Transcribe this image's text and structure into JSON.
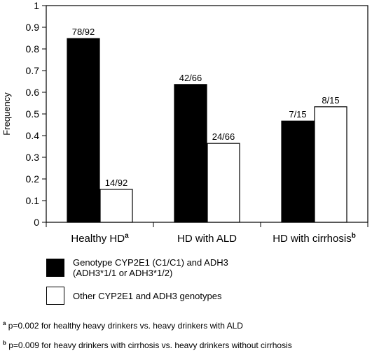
{
  "chart_data": {
    "type": "bar",
    "ylabel": "Frequency",
    "ylim": [
      0,
      1
    ],
    "yticks": [
      "0",
      "0.1",
      "0.2",
      "0.3",
      "0.4",
      "0.5",
      "0.6",
      "0.7",
      "0.8",
      "0.9",
      "1"
    ],
    "categories": [
      {
        "label": "Healthy HD",
        "sup": "a"
      },
      {
        "label": "HD with ALD",
        "sup": ""
      },
      {
        "label": "HD with cirrhosis",
        "sup": "b"
      }
    ],
    "series": [
      {
        "name": "Genotype CYP2E1 (C1/C1) and ADH3 (ADH3*1/1 or ADH3*1/2)",
        "fill": "#000000",
        "values": [
          0.848,
          0.636,
          0.467
        ],
        "data_labels": [
          "78/92",
          "42/66",
          "7/15"
        ]
      },
      {
        "name": "Other CYP2E1 and ADH3 genotypes",
        "fill": "#ffffff",
        "values": [
          0.152,
          0.364,
          0.533
        ],
        "data_labels": [
          "14/92",
          "24/66",
          "8/15"
        ]
      }
    ],
    "grid": false,
    "legend_position": "bottom"
  },
  "legend": {
    "item1_line1": "Genotype CYP2E1 (C1/C1) and ADH3",
    "item1_line2": "(ADH3*1/1 or ADH3*1/2)",
    "item2": "Other CYP2E1 and ADH3 genotypes"
  },
  "footnotes": [
    {
      "sup": "a",
      "text": "p=0.002  for healthy heavy drinkers vs. heavy drinkers with ALD"
    },
    {
      "sup": "b",
      "text": "p=0.009  for heavy drinkers with cirrhosis vs. heavy drinkers without cirrhosis"
    }
  ]
}
